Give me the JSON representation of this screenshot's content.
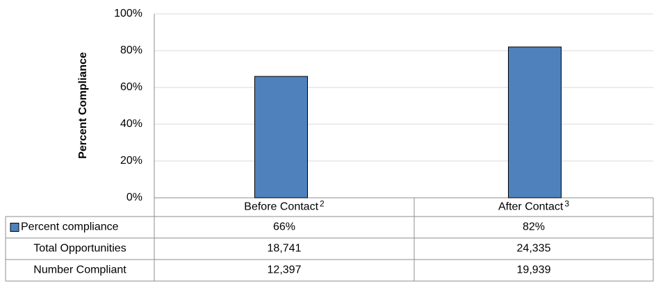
{
  "chart_data": {
    "type": "bar",
    "y_label": "Percent Compliance",
    "categories": [
      "Before Contact",
      "After Contact"
    ],
    "category_notes": [
      "2",
      "3"
    ],
    "series": [
      {
        "name": "Percent compliance",
        "color": "#4f81bd",
        "values": [
          66,
          82
        ],
        "value_labels": [
          "66%",
          "82%"
        ]
      }
    ],
    "ylim": [
      0,
      100
    ],
    "yticks": [
      {
        "value": 0,
        "label": "0%"
      },
      {
        "value": 20,
        "label": "20%"
      },
      {
        "value": 40,
        "label": "40%"
      },
      {
        "value": 60,
        "label": "60%"
      },
      {
        "value": 80,
        "label": "80%"
      },
      {
        "value": 100,
        "label": "100%"
      }
    ],
    "grid": true,
    "table": {
      "rows": [
        {
          "label": "Total Opportunities",
          "values": [
            "18,741",
            "24,335"
          ]
        },
        {
          "label": "Number Compliant",
          "values": [
            "12,397",
            "19,939"
          ]
        }
      ]
    }
  }
}
